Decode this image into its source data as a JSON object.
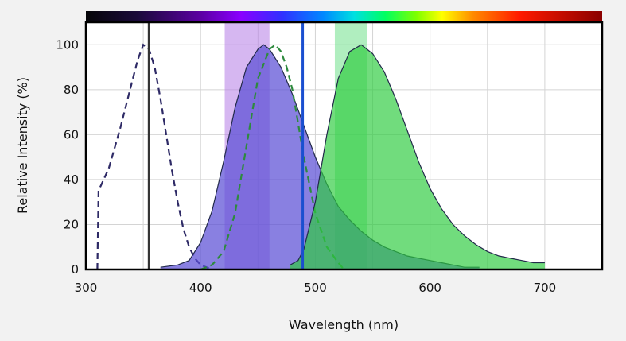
{
  "chart_data": {
    "type": "area",
    "xlabel": "Wavelength (nm)",
    "ylabel": "Relative Intensity (%)",
    "xlim": [
      300,
      750
    ],
    "ylim": [
      0,
      110
    ],
    "x_ticks": [
      300,
      400,
      500,
      600,
      700
    ],
    "y_ticks": [
      0,
      20,
      40,
      60,
      80,
      100
    ],
    "grid": true,
    "spectrum_bar": true,
    "series": [
      {
        "style": "dashed",
        "color": "#2e2a66",
        "x": [
          310,
          311,
          320,
          330,
          340,
          345,
          350,
          355,
          360,
          365,
          370,
          375,
          380,
          385,
          390,
          395,
          400,
          405,
          410
        ],
        "y": [
          0,
          35,
          45,
          63,
          83,
          93,
          100,
          98,
          90,
          76,
          60,
          44,
          30,
          18,
          10,
          5,
          2,
          1,
          0
        ]
      },
      {
        "style": "filled",
        "color": "#5b4fd6",
        "fill_opacity": 0.72,
        "x": [
          365,
          380,
          390,
          400,
          410,
          420,
          430,
          440,
          450,
          455,
          460,
          470,
          480,
          490,
          500,
          510,
          520,
          530,
          540,
          550,
          560,
          570,
          580,
          590,
          600,
          610,
          620,
          630,
          643
        ],
        "y": [
          1,
          2,
          4,
          12,
          26,
          48,
          72,
          90,
          98,
          100,
          98,
          90,
          78,
          64,
          50,
          38,
          28,
          22,
          17,
          13,
          10,
          8,
          6,
          5,
          4,
          3,
          2,
          1,
          1
        ]
      },
      {
        "style": "dashed",
        "color": "#2e8a3e",
        "x": [
          400,
          410,
          420,
          430,
          440,
          450,
          460,
          465,
          470,
          475,
          480,
          490,
          500,
          510,
          520,
          525
        ],
        "y": [
          0,
          2,
          8,
          25,
          55,
          85,
          98,
          100,
          97,
          90,
          80,
          50,
          25,
          10,
          3,
          0
        ]
      },
      {
        "style": "filled",
        "color": "#2ecc40",
        "fill_opacity": 0.68,
        "x": [
          478,
          485,
          490,
          500,
          510,
          520,
          530,
          540,
          545,
          550,
          560,
          570,
          580,
          590,
          600,
          610,
          620,
          630,
          640,
          650,
          660,
          670,
          680,
          690,
          700
        ],
        "y": [
          2,
          4,
          9,
          30,
          60,
          85,
          97,
          100,
          98,
          96,
          88,
          76,
          62,
          48,
          36,
          27,
          20,
          15,
          11,
          8,
          6,
          5,
          4,
          3,
          3
        ]
      }
    ],
    "vertical_lines": [
      {
        "x": 355,
        "color": "#333333"
      },
      {
        "x": 489,
        "color": "#1a4fd0"
      }
    ],
    "bands": [
      {
        "x0": 421,
        "x1": 460,
        "color": "#b57be6"
      },
      {
        "x0": 517,
        "x1": 545,
        "color": "#6fe08a"
      }
    ]
  }
}
